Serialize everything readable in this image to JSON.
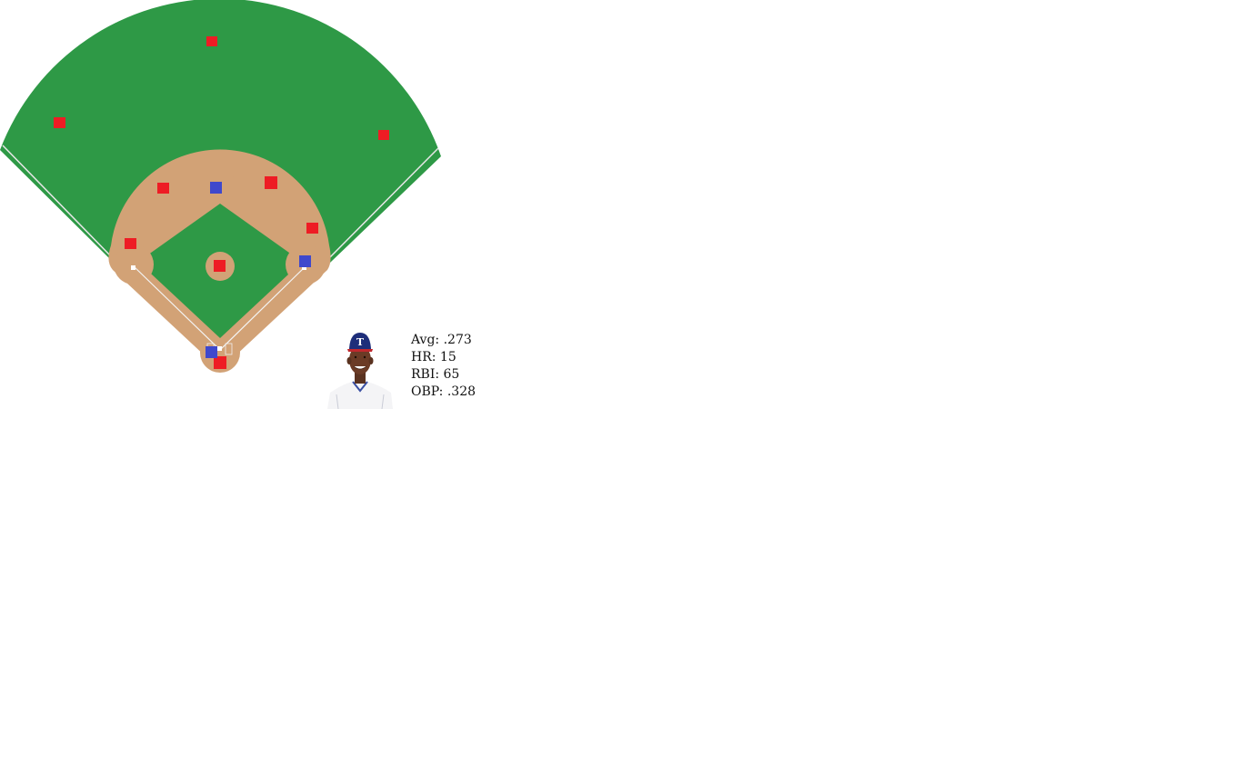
{
  "colors": {
    "grass": "#2e9946",
    "infield_dirt": "#d2a276",
    "foul_line": "#e8e8e8",
    "defender_marker": "#ee1c24",
    "runner_marker": "#3f48cc",
    "background": "#ffffff"
  },
  "field": {
    "defenders": [
      {
        "position": "left-field",
        "color_key": "defender_marker"
      },
      {
        "position": "center-field",
        "color_key": "defender_marker"
      },
      {
        "position": "right-field",
        "color_key": "defender_marker"
      },
      {
        "position": "shortstop",
        "color_key": "defender_marker"
      },
      {
        "position": "second-base",
        "color_key": "defender_marker"
      },
      {
        "position": "third-base",
        "color_key": "defender_marker"
      },
      {
        "position": "first-base",
        "color_key": "defender_marker"
      },
      {
        "position": "pitcher",
        "color_key": "defender_marker"
      },
      {
        "position": "catcher",
        "color_key": "defender_marker"
      }
    ],
    "runners": [
      {
        "base": "second",
        "color_key": "runner_marker"
      },
      {
        "base": "first",
        "color_key": "runner_marker"
      },
      {
        "base": "batter",
        "color_key": "runner_marker"
      }
    ]
  },
  "player": {
    "photo_icon": "player-headshot-icon",
    "cap_letter": "T",
    "stats": {
      "avg": "Avg: .273",
      "hr": "HR: 15",
      "rbi": "RBI: 65",
      "obp": "OBP: .328"
    }
  }
}
